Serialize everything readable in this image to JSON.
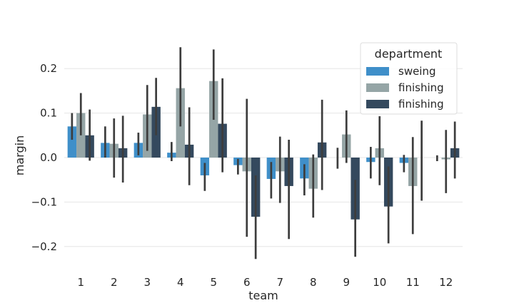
{
  "chart_data": {
    "type": "bar",
    "xlabel": "team",
    "ylabel": "margin",
    "ylim": [
      -0.25,
      0.25
    ],
    "yticks": [
      -0.2,
      -0.1,
      0.0,
      0.1,
      0.2
    ],
    "ytick_labels": [
      "−0.2",
      "−0.1",
      "0.0",
      "0.1",
      "0.2"
    ],
    "grid": true,
    "legend": {
      "title": "department",
      "position": "top-right"
    },
    "categories": [
      "1",
      "2",
      "3",
      "4",
      "5",
      "6",
      "7",
      "8",
      "9",
      "10",
      "11",
      "12"
    ],
    "series": [
      {
        "name": "sweing",
        "color": "#3f8fc9",
        "values": [
          0.07,
          0.033,
          0.033,
          0.011,
          -0.04,
          -0.017,
          -0.048,
          -0.047,
          0.0,
          -0.01,
          -0.012,
          0.0
        ],
        "err_low": [
          0.04,
          0.0,
          0.005,
          -0.008,
          -0.075,
          -0.038,
          -0.092,
          -0.085,
          -0.025,
          -0.047,
          -0.033,
          -0.008
        ],
        "err_high": [
          0.1,
          0.07,
          0.056,
          0.035,
          -0.012,
          -0.003,
          -0.01,
          -0.015,
          0.022,
          0.024,
          0.006,
          0.005
        ]
      },
      {
        "name": "finishing",
        "color": "#95a5a6",
        "values": [
          0.1,
          0.031,
          0.097,
          0.156,
          0.172,
          -0.031,
          -0.031,
          -0.07,
          0.052,
          0.021,
          -0.064,
          -0.004
        ],
        "err_low": [
          0.05,
          -0.045,
          0.015,
          0.07,
          0.085,
          -0.178,
          -0.102,
          -0.135,
          -0.012,
          -0.062,
          -0.172,
          -0.08
        ],
        "err_high": [
          0.145,
          0.088,
          0.163,
          0.248,
          0.243,
          0.132,
          0.047,
          0.007,
          0.106,
          0.093,
          0.046,
          0.062
        ]
      },
      {
        "name": "finishing",
        "color": "#34495e",
        "values": [
          0.05,
          0.021,
          0.114,
          0.029,
          0.076,
          -0.133,
          -0.064,
          0.034,
          -0.139,
          -0.11,
          0.0,
          0.021
        ],
        "err_low": [
          -0.007,
          -0.056,
          0.05,
          -0.062,
          -0.033,
          -0.228,
          -0.183,
          -0.073,
          -0.223,
          -0.193,
          -0.097,
          -0.047
        ],
        "err_high": [
          0.108,
          0.094,
          0.179,
          0.113,
          0.178,
          -0.04,
          0.04,
          0.13,
          -0.05,
          -0.02,
          0.083,
          0.081
        ]
      }
    ]
  }
}
